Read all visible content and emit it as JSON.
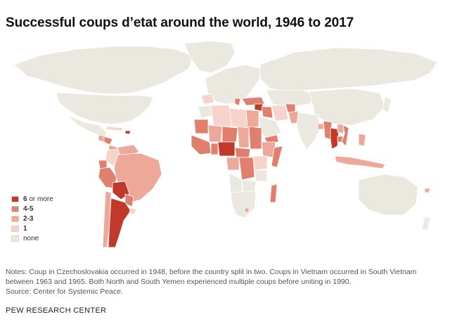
{
  "title": "Successful coups d’etat around the world, 1946 to 2017",
  "legend": {
    "items": [
      {
        "bold": "6",
        "rest": " or more",
        "color": "#c0392b"
      },
      {
        "bold": "4-5",
        "rest": "",
        "color": "#e07f6d"
      },
      {
        "bold": "2-3",
        "rest": "",
        "color": "#eda89a"
      },
      {
        "bold": "1",
        "rest": "",
        "color": "#f6d3cb"
      },
      {
        "bold": "",
        "rest": "none",
        "color": "#ebe8df"
      }
    ]
  },
  "notes": {
    "line1": "Notes: Coup in Czechoslovakia occurred in 1948, before the country split in two. Coups in Vietnam occurred in South Vietnam between 1963 and 1965. Both North and South Yemen experienced multiple coups before uniting in 1990.",
    "line2": "Source: Center for Systemic Peace."
  },
  "source": "PEW RESEARCH CENTER",
  "colors": {
    "none": "#ebe8df",
    "one": "#f6d3cb",
    "two_three": "#eda89a",
    "four_five": "#e07f6d",
    "six_plus": "#c0392b",
    "border": "#ffffff"
  }
}
